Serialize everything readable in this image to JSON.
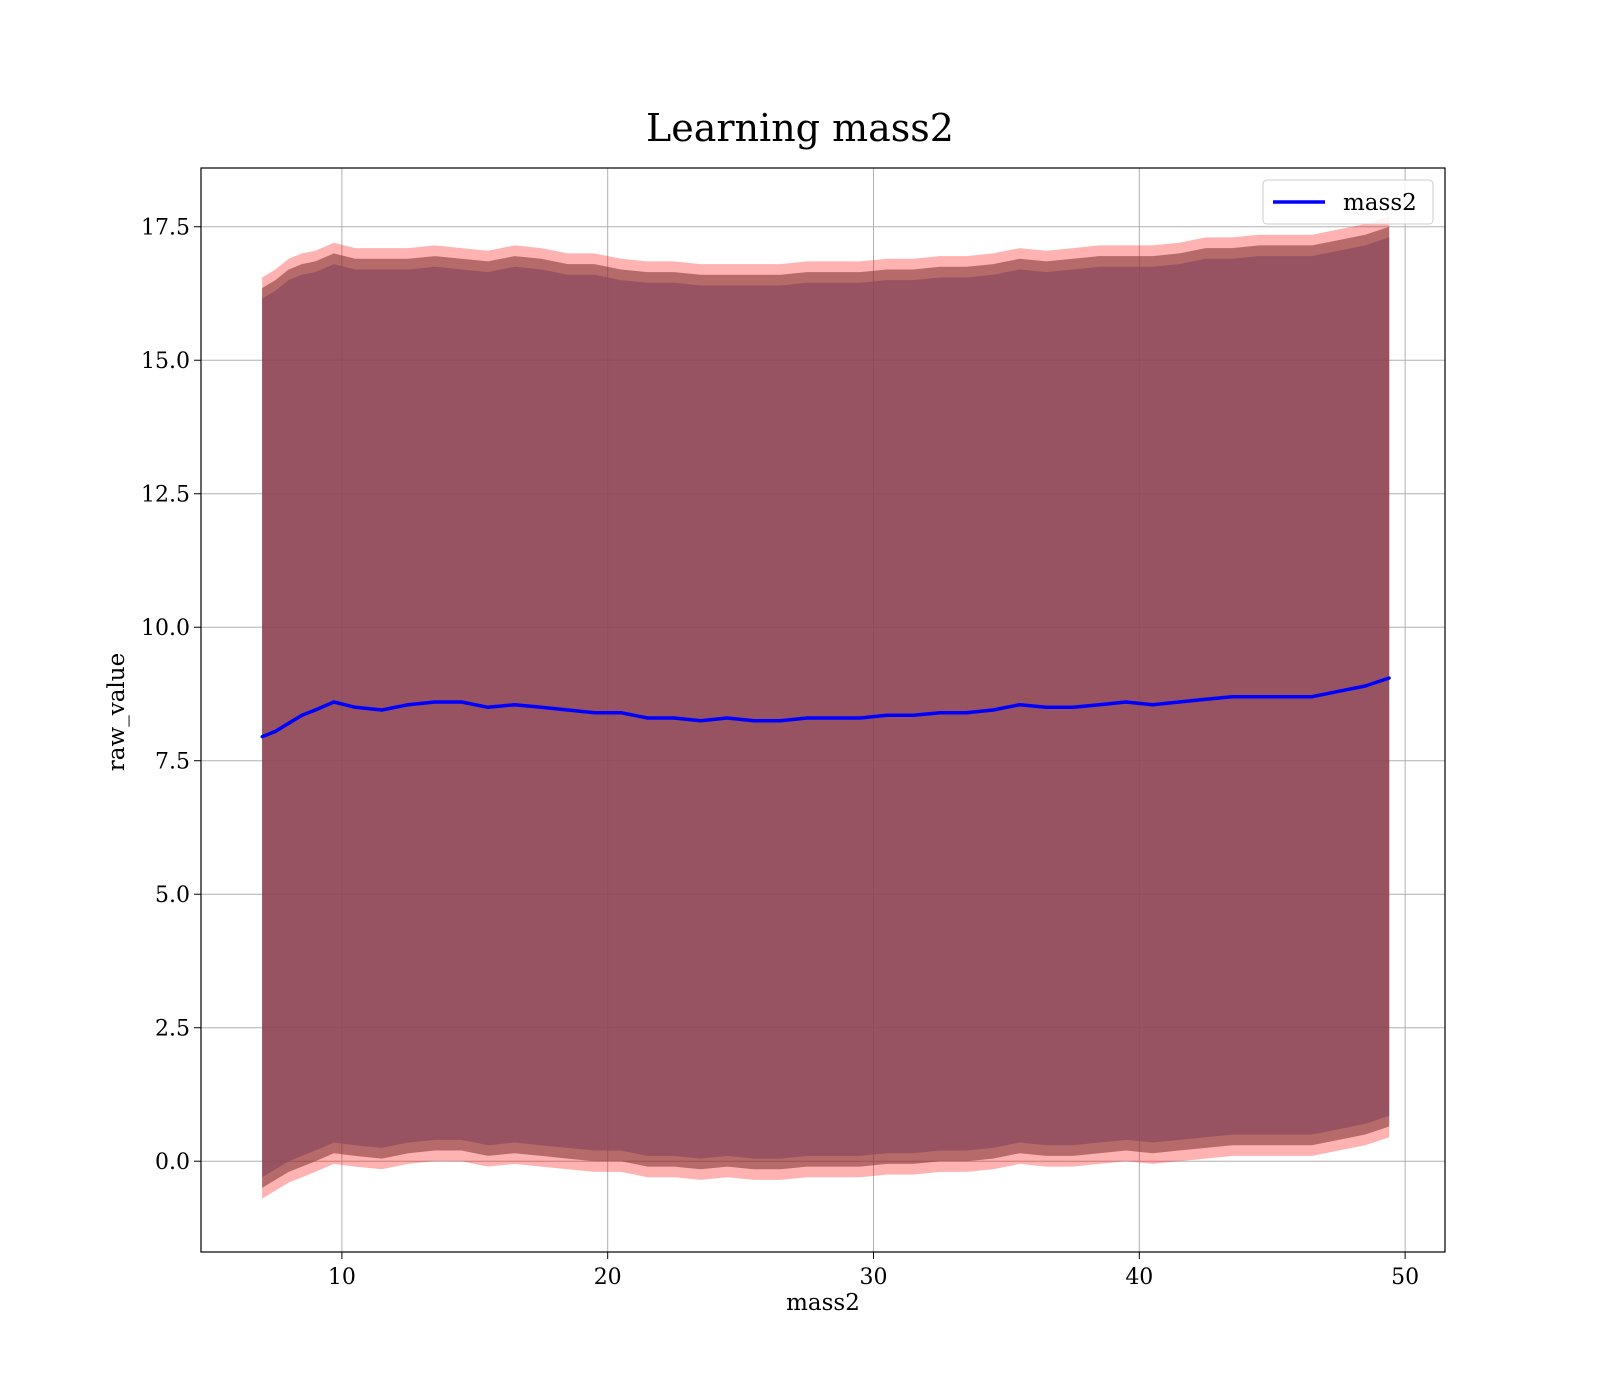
{
  "chart_data": {
    "type": "area",
    "title": "Learning mass2",
    "xlabel": "mass2",
    "ylabel": "raw_value",
    "xlim": [
      4.7,
      51.5
    ],
    "ylim": [
      -1.7,
      18.6
    ],
    "xticks": [
      "10",
      "20",
      "30",
      "40",
      "50"
    ],
    "yticks": [
      "0.0",
      "2.5",
      "5.0",
      "7.5",
      "10.0",
      "12.5",
      "15.0",
      "17.5"
    ],
    "grid": true,
    "legend_position": "top-right",
    "x": [
      7.0,
      7.5,
      8.0,
      8.5,
      9.0,
      9.7,
      10.5,
      11.5,
      12.5,
      13.5,
      14.5,
      15.5,
      16.5,
      17.5,
      18.5,
      19.5,
      20.5,
      21.5,
      22.5,
      23.5,
      24.5,
      25.5,
      26.5,
      27.5,
      28.5,
      29.5,
      30.5,
      31.5,
      32.5,
      33.5,
      34.5,
      35.5,
      36.5,
      37.5,
      38.5,
      39.5,
      40.5,
      41.5,
      42.5,
      43.5,
      44.5,
      45.5,
      46.5,
      47.5,
      48.5,
      49.4
    ],
    "series": [
      {
        "name": "mass2",
        "color": "#0000ff",
        "values": [
          7.95,
          8.05,
          8.2,
          8.35,
          8.45,
          8.6,
          8.5,
          8.45,
          8.55,
          8.6,
          8.6,
          8.5,
          8.55,
          8.5,
          8.45,
          8.4,
          8.4,
          8.3,
          8.3,
          8.25,
          8.3,
          8.25,
          8.25,
          8.3,
          8.3,
          8.3,
          8.35,
          8.35,
          8.4,
          8.4,
          8.45,
          8.55,
          8.5,
          8.5,
          8.55,
          8.6,
          8.55,
          8.6,
          8.65,
          8.7,
          8.7,
          8.7,
          8.7,
          8.8,
          8.9,
          9.05
        ]
      }
    ],
    "bands": [
      {
        "color": "#ff0000",
        "opacity": 0.3,
        "upper": [
          16.55,
          16.7,
          16.9,
          17.0,
          17.05,
          17.2,
          17.1,
          17.1,
          17.1,
          17.15,
          17.1,
          17.05,
          17.15,
          17.1,
          17.0,
          17.0,
          16.9,
          16.85,
          16.85,
          16.8,
          16.8,
          16.8,
          16.8,
          16.85,
          16.85,
          16.85,
          16.9,
          16.9,
          16.95,
          16.95,
          17.0,
          17.1,
          17.05,
          17.1,
          17.15,
          17.15,
          17.15,
          17.2,
          17.3,
          17.3,
          17.35,
          17.35,
          17.35,
          17.45,
          17.55,
          17.7
        ],
        "lower": [
          -0.7,
          -0.55,
          -0.4,
          -0.3,
          -0.2,
          -0.05,
          -0.1,
          -0.15,
          -0.05,
          0.0,
          0.0,
          -0.1,
          -0.05,
          -0.1,
          -0.15,
          -0.2,
          -0.2,
          -0.3,
          -0.3,
          -0.35,
          -0.3,
          -0.35,
          -0.35,
          -0.3,
          -0.3,
          -0.3,
          -0.25,
          -0.25,
          -0.2,
          -0.2,
          -0.15,
          -0.05,
          -0.1,
          -0.1,
          -0.05,
          0.0,
          -0.05,
          0.0,
          0.05,
          0.1,
          0.1,
          0.1,
          0.1,
          0.2,
          0.3,
          0.45
        ]
      },
      {
        "color": "#7a3030",
        "opacity": 0.55,
        "upper": [
          16.35,
          16.5,
          16.7,
          16.8,
          16.85,
          17.0,
          16.9,
          16.9,
          16.9,
          16.95,
          16.9,
          16.85,
          16.95,
          16.9,
          16.8,
          16.8,
          16.7,
          16.65,
          16.65,
          16.6,
          16.6,
          16.6,
          16.6,
          16.65,
          16.65,
          16.65,
          16.7,
          16.7,
          16.75,
          16.75,
          16.8,
          16.9,
          16.85,
          16.9,
          16.95,
          16.95,
          16.95,
          17.0,
          17.1,
          17.1,
          17.15,
          17.15,
          17.15,
          17.25,
          17.35,
          17.5
        ],
        "lower": [
          -0.5,
          -0.35,
          -0.2,
          -0.1,
          0.0,
          0.15,
          0.1,
          0.05,
          0.15,
          0.2,
          0.2,
          0.1,
          0.15,
          0.1,
          0.05,
          0.0,
          0.0,
          -0.1,
          -0.1,
          -0.15,
          -0.1,
          -0.15,
          -0.15,
          -0.1,
          -0.1,
          -0.1,
          -0.05,
          -0.05,
          0.0,
          0.0,
          0.05,
          0.15,
          0.1,
          0.1,
          0.15,
          0.2,
          0.15,
          0.2,
          0.25,
          0.3,
          0.3,
          0.3,
          0.3,
          0.4,
          0.5,
          0.65
        ]
      },
      {
        "color": "#8a4a5e",
        "opacity": 0.7,
        "upper": [
          16.15,
          16.3,
          16.5,
          16.6,
          16.65,
          16.8,
          16.7,
          16.7,
          16.7,
          16.75,
          16.7,
          16.65,
          16.75,
          16.7,
          16.6,
          16.6,
          16.5,
          16.45,
          16.45,
          16.4,
          16.4,
          16.4,
          16.4,
          16.45,
          16.45,
          16.45,
          16.5,
          16.5,
          16.55,
          16.55,
          16.6,
          16.7,
          16.65,
          16.7,
          16.75,
          16.75,
          16.75,
          16.8,
          16.9,
          16.9,
          16.95,
          16.95,
          16.95,
          17.05,
          17.15,
          17.3
        ],
        "lower": [
          -0.3,
          -0.15,
          0.0,
          0.1,
          0.2,
          0.35,
          0.3,
          0.25,
          0.35,
          0.4,
          0.4,
          0.3,
          0.35,
          0.3,
          0.25,
          0.2,
          0.2,
          0.1,
          0.1,
          0.05,
          0.1,
          0.05,
          0.05,
          0.1,
          0.1,
          0.1,
          0.15,
          0.15,
          0.2,
          0.2,
          0.25,
          0.35,
          0.3,
          0.3,
          0.35,
          0.4,
          0.35,
          0.4,
          0.45,
          0.5,
          0.5,
          0.5,
          0.5,
          0.6,
          0.7,
          0.85
        ]
      }
    ]
  }
}
